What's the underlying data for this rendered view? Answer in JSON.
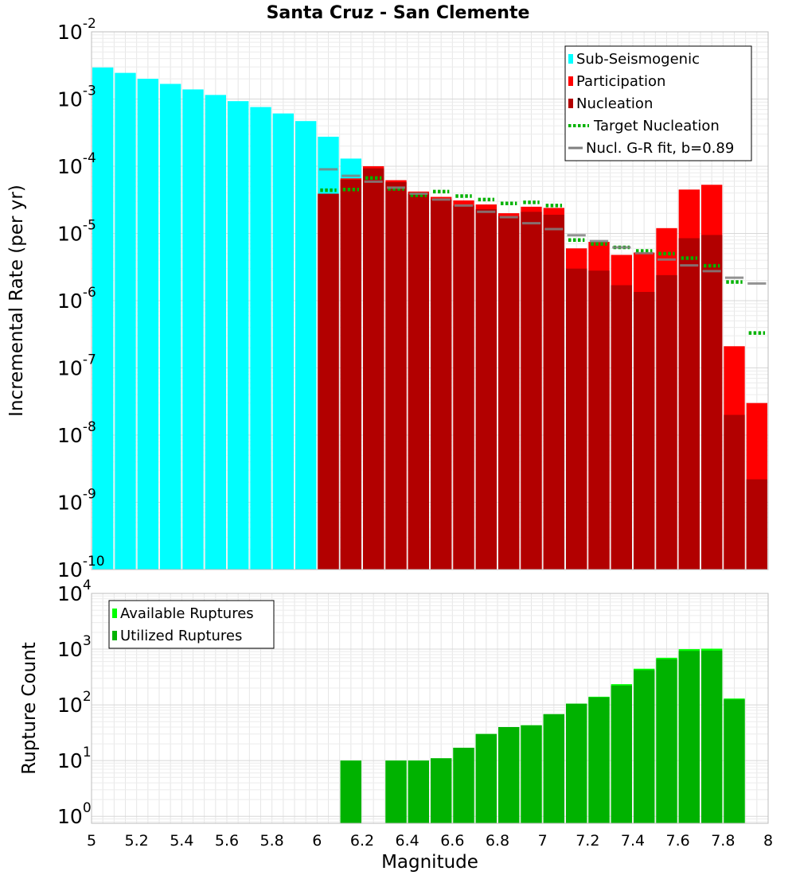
{
  "title": "Santa Cruz - San Clemente",
  "chart_data": [
    {
      "type": "bar",
      "id": "rate",
      "ylabel": "Incremental Rate (per yr)",
      "xlabel": "",
      "xlim": [
        5,
        8
      ],
      "ylim": [
        1e-10,
        0.01
      ],
      "yscale": "log",
      "grid": true,
      "bin_width": 0.1,
      "y_tick_labels": [
        {
          "base": "10",
          "exp": "-10"
        },
        {
          "base": "10",
          "exp": "-9"
        },
        {
          "base": "10",
          "exp": "-8"
        },
        {
          "base": "10",
          "exp": "-7"
        },
        {
          "base": "10",
          "exp": "-6"
        },
        {
          "base": "10",
          "exp": "-5"
        },
        {
          "base": "10",
          "exp": "-4"
        },
        {
          "base": "10",
          "exp": "-3"
        },
        {
          "base": "10",
          "exp": "-2"
        }
      ],
      "legend": {
        "placement": "top-right",
        "entries": [
          {
            "label": "Sub-Seismogenic",
            "color": "#00ffff",
            "kind": "box"
          },
          {
            "label": "Participation",
            "color": "#ff0000",
            "kind": "box"
          },
          {
            "label": "Nucleation",
            "color": "#b20000",
            "kind": "box"
          },
          {
            "label": "Target Nucleation",
            "color": "#00b200",
            "kind": "dotted"
          },
          {
            "label": "Nucl. G-R fit, b=0.89",
            "color": "#808080",
            "kind": "line"
          }
        ]
      },
      "series": [
        {
          "name": "Sub-Seismogenic",
          "color": "#00ffff",
          "x": [
            5.05,
            5.15,
            5.25,
            5.35,
            5.45,
            5.55,
            5.65,
            5.75,
            5.85,
            5.95,
            6.05,
            6.15
          ],
          "values": [
            0.00295,
            0.00245,
            0.002,
            0.00168,
            0.00139,
            0.00115,
            0.00093,
            0.00076,
            0.00061,
            0.00047,
            0.000275,
            0.00013
          ]
        },
        {
          "name": "Participation",
          "color": "#ff0000",
          "x": [
            6.05,
            6.15,
            6.25,
            6.35,
            6.45,
            6.55,
            6.65,
            6.75,
            6.85,
            6.95,
            7.05,
            7.15,
            7.25,
            7.35,
            7.45,
            7.55,
            7.65,
            7.75,
            7.85,
            7.95
          ],
          "values": [
            3.9e-05,
            6.6e-05,
            0.0001,
            6.2e-05,
            4.2e-05,
            3.5e-05,
            3.1e-05,
            2.7e-05,
            2e-05,
            2.5e-05,
            2.4e-05,
            6e-06,
            7.5e-06,
            4.8e-06,
            5.2e-06,
            1.2e-05,
            4.5e-05,
            5.3e-05,
            2.1e-07,
            3e-08
          ]
        },
        {
          "name": "Nucleation",
          "color": "#b20000",
          "x": [
            6.05,
            6.15,
            6.25,
            6.35,
            6.45,
            6.55,
            6.65,
            6.75,
            6.85,
            6.95,
            7.05,
            7.15,
            7.25,
            7.35,
            7.45,
            7.55,
            7.65,
            7.75,
            7.85,
            7.95
          ],
          "values": [
            3.9e-05,
            6.3e-05,
            9.3e-05,
            5.8e-05,
            3.9e-05,
            3.2e-05,
            2.6e-05,
            2.3e-05,
            1.8e-05,
            2.1e-05,
            1.9e-05,
            3e-06,
            2.8e-06,
            1.7e-06,
            1.35e-06,
            2.4e-06,
            8.5e-06,
            9.5e-06,
            2e-08,
            2.2e-09
          ]
        },
        {
          "name": "Target Nucleation",
          "color": "#00b200",
          "style": "dotted",
          "x": [
            6.05,
            6.15,
            6.25,
            6.35,
            6.45,
            6.55,
            6.65,
            6.75,
            6.85,
            6.95,
            7.05,
            7.15,
            7.25,
            7.35,
            7.45,
            7.55,
            7.65,
            7.75,
            7.85,
            7.95
          ],
          "values": [
            4.4e-05,
            4.5e-05,
            6.7e-05,
            4.6e-05,
            3.7e-05,
            4.2e-05,
            3.6e-05,
            3.2e-05,
            2.8e-05,
            2.9e-05,
            2.6e-05,
            8e-06,
            7e-06,
            6.2e-06,
            5.5e-06,
            5e-06,
            4.3e-06,
            3.3e-06,
            1.9e-06,
            3.3e-07
          ]
        },
        {
          "name": "Nucl. G-R fit, b=0.89",
          "color": "#808080",
          "style": "line",
          "x": [
            6.05,
            6.15,
            6.25,
            6.35,
            6.45,
            6.55,
            6.65,
            6.75,
            6.85,
            6.95,
            7.05,
            7.15,
            7.25,
            7.35,
            7.45,
            7.55,
            7.65,
            7.75,
            7.85,
            7.95
          ],
          "values": [
            9e-05,
            7.2e-05,
            5.9e-05,
            4.8e-05,
            3.9e-05,
            3.2e-05,
            2.6e-05,
            2.1e-05,
            1.75e-05,
            1.42e-05,
            1.16e-05,
            9.4e-06,
            7.7e-06,
            6.2e-06,
            5.1e-06,
            4.1e-06,
            3.35e-06,
            2.75e-06,
            2.2e-06,
            1.8e-06
          ]
        }
      ]
    },
    {
      "type": "bar",
      "id": "count",
      "ylabel": "Rupture Count",
      "xlabel": "Magnitude",
      "xlim": [
        5,
        8
      ],
      "ylim": [
        0.75,
        10000
      ],
      "yscale": "log",
      "grid": true,
      "bin_width": 0.1,
      "x_ticks": [
        "5",
        "5.2",
        "5.4",
        "5.6",
        "5.8",
        "6",
        "6.2",
        "6.4",
        "6.6",
        "6.8",
        "7",
        "7.2",
        "7.4",
        "7.6",
        "7.8",
        "8"
      ],
      "y_tick_labels": [
        {
          "base": "10",
          "exp": "0"
        },
        {
          "base": "10",
          "exp": "1"
        },
        {
          "base": "10",
          "exp": "2"
        },
        {
          "base": "10",
          "exp": "3"
        },
        {
          "base": "10",
          "exp": "4"
        }
      ],
      "legend": {
        "placement": "top-left",
        "entries": [
          {
            "label": "Available Ruptures",
            "color": "#00ff00",
            "kind": "box"
          },
          {
            "label": "Utilized Ruptures",
            "color": "#00b200",
            "kind": "box"
          }
        ]
      },
      "series": [
        {
          "name": "Available Ruptures",
          "color": "#00ff00",
          "x": [
            6.15,
            6.35,
            6.45,
            6.55,
            6.65,
            6.75,
            6.85,
            6.95,
            7.05,
            7.15,
            7.25,
            7.35,
            7.45,
            7.55,
            7.65,
            7.75,
            7.85
          ],
          "values": [
            10,
            10,
            10,
            11,
            17,
            30,
            40,
            43,
            68,
            105,
            140,
            235,
            445,
            700,
            1000,
            1020,
            130
          ]
        },
        {
          "name": "Utilized Ruptures",
          "color": "#00b200",
          "x": [
            6.15,
            6.35,
            6.45,
            6.55,
            6.65,
            6.75,
            6.85,
            6.95,
            7.05,
            7.15,
            7.25,
            7.35,
            7.45,
            7.55,
            7.65,
            7.75,
            7.85
          ],
          "values": [
            10,
            10,
            10,
            11,
            17,
            30,
            40,
            43,
            68,
            105,
            137,
            222,
            420,
            660,
            930,
            940,
            125
          ]
        }
      ]
    }
  ]
}
